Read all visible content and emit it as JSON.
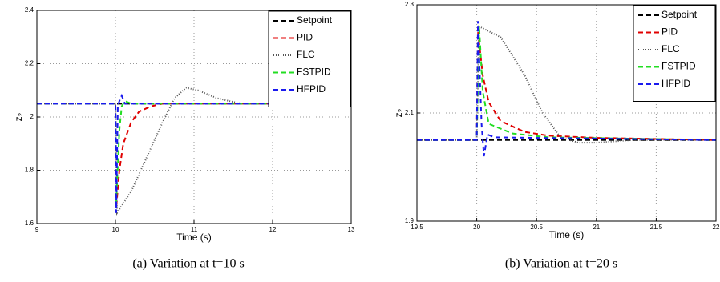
{
  "chart_data": [
    {
      "type": "line",
      "caption": "(a) Variation at t=10 s",
      "xlabel": "Time (s)",
      "ylabel": "z₂",
      "xlim": [
        9,
        13
      ],
      "xticks": [
        9,
        10,
        11,
        12,
        13
      ],
      "ylim": [
        1.6,
        2.4
      ],
      "yticks": [
        1.6,
        1.8,
        2,
        2.2,
        2.4
      ],
      "grid": true,
      "legend": "upper right",
      "series": [
        {
          "name": "Setpoint",
          "color": "#000000",
          "style": "dashed",
          "x": [
            9,
            13
          ],
          "values": [
            2.05,
            2.05
          ]
        },
        {
          "name": "PID",
          "color": "#e00000",
          "style": "dashed",
          "x": [
            9,
            10,
            10.01,
            10.05,
            10.1,
            10.2,
            10.3,
            10.45,
            10.6,
            13
          ],
          "values": [
            2.05,
            2.05,
            1.66,
            1.8,
            1.9,
            1.98,
            2.02,
            2.04,
            2.05,
            2.05
          ]
        },
        {
          "name": "FLC",
          "color": "#555555",
          "style": "dotted",
          "x": [
            9,
            10,
            10.02,
            10.2,
            10.4,
            10.6,
            10.75,
            10.9,
            11.05,
            11.3,
            11.6,
            13
          ],
          "values": [
            2.05,
            2.05,
            1.64,
            1.72,
            1.85,
            1.98,
            2.07,
            2.11,
            2.1,
            2.07,
            2.05,
            2.05
          ]
        },
        {
          "name": "FSTPID",
          "color": "#22dd22",
          "style": "dashed",
          "x": [
            9,
            10,
            10.01,
            10.05,
            10.08,
            10.12,
            10.2,
            13
          ],
          "values": [
            2.05,
            2.05,
            1.68,
            1.95,
            2.04,
            2.06,
            2.05,
            2.05
          ]
        },
        {
          "name": "HFPID",
          "color": "#1a1aee",
          "style": "dashed",
          "x": [
            9,
            10,
            10.01,
            10.03,
            10.05,
            10.08,
            10.12,
            13
          ],
          "values": [
            2.05,
            2.05,
            1.64,
            2.04,
            2.06,
            2.08,
            2.05,
            2.05
          ]
        }
      ]
    },
    {
      "type": "line",
      "caption": "(b) Variation at t=20 s",
      "xlabel": "Time (s)",
      "ylabel": "z₂",
      "xlim": [
        19.5,
        22
      ],
      "xticks": [
        19.5,
        20,
        20.5,
        21,
        21.5,
        22
      ],
      "ylim": [
        1.9,
        2.3
      ],
      "yticks": [
        1.9,
        2.1,
        2.3
      ],
      "grid": true,
      "legend": "upper right",
      "series": [
        {
          "name": "Setpoint",
          "color": "#000000",
          "style": "dashed",
          "x": [
            19.5,
            22
          ],
          "values": [
            2.05,
            2.05
          ]
        },
        {
          "name": "PID",
          "color": "#e00000",
          "style": "dashed",
          "x": [
            19.5,
            20,
            20.01,
            20.05,
            20.1,
            20.2,
            20.4,
            20.6,
            21,
            22
          ],
          "values": [
            2.05,
            2.05,
            2.25,
            2.17,
            2.12,
            2.085,
            2.065,
            2.058,
            2.054,
            2.05
          ]
        },
        {
          "name": "FLC",
          "color": "#555555",
          "style": "dotted",
          "x": [
            19.5,
            20,
            20.02,
            20.2,
            20.4,
            20.55,
            20.7,
            20.85,
            21,
            21.3,
            22
          ],
          "values": [
            2.05,
            2.05,
            2.26,
            2.24,
            2.17,
            2.1,
            2.055,
            2.045,
            2.045,
            2.05,
            2.05
          ]
        },
        {
          "name": "FSTPID",
          "color": "#22dd22",
          "style": "dashed",
          "x": [
            19.5,
            20,
            20.02,
            20.05,
            20.1,
            20.3,
            20.6,
            22
          ],
          "values": [
            2.05,
            2.05,
            2.26,
            2.14,
            2.08,
            2.062,
            2.055,
            2.05
          ]
        },
        {
          "name": "HFPID",
          "color": "#1a1aee",
          "style": "dashed",
          "x": [
            19.5,
            20,
            20.01,
            20.04,
            20.06,
            20.09,
            20.15,
            22
          ],
          "values": [
            2.05,
            2.05,
            2.27,
            2.08,
            2.02,
            2.06,
            2.055,
            2.05
          ]
        }
      ]
    }
  ]
}
